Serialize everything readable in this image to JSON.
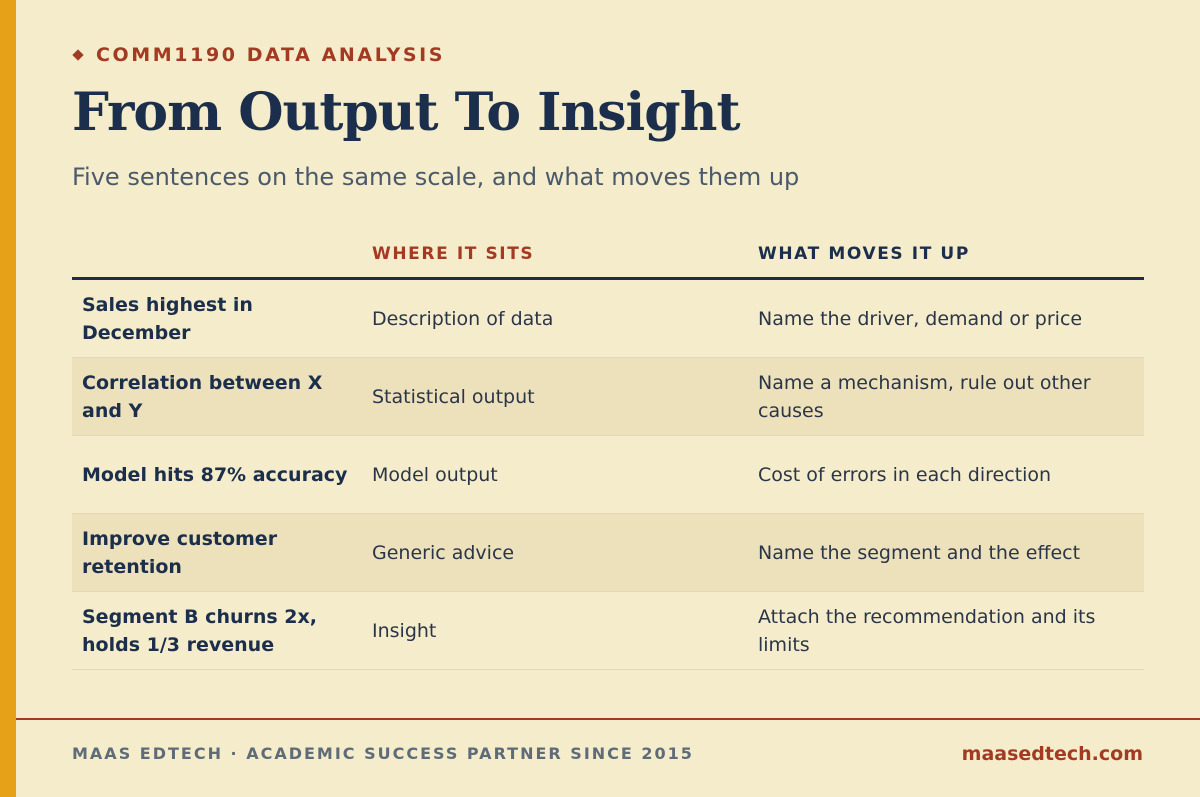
{
  "header": {
    "eyebrow": "COMM1190 DATA ANALYSIS",
    "title": "From Output To Insight",
    "subtitle": "Five sentences on the same scale, and what moves them up"
  },
  "table": {
    "columns": [
      "",
      "WHERE IT SITS",
      "WHAT MOVES IT UP"
    ],
    "rows": [
      {
        "sentence": "Sales highest in December",
        "sits": "Description of data",
        "moves": "Name the driver, demand or price"
      },
      {
        "sentence": "Correlation between X and Y",
        "sits": "Statistical output",
        "moves": "Name a mechanism, rule out other causes"
      },
      {
        "sentence": "Model hits 87% accuracy",
        "sits": "Model output",
        "moves": "Cost of errors in each direction"
      },
      {
        "sentence": "Improve customer retention",
        "sits": "Generic advice",
        "moves": "Name the segment and the effect"
      },
      {
        "sentence": "Segment B churns 2x, holds 1/3 revenue",
        "sits": "Insight",
        "moves": "Attach the recommendation and its limits"
      }
    ]
  },
  "footer": {
    "left": "MAAS EDTECH · ACADEMIC SUCCESS PARTNER SINCE 2015",
    "right": "maasedtech.com"
  },
  "colors": {
    "background": "#F5ECCB",
    "accent_bar": "#E6A118",
    "brand_red": "#A33A22",
    "navy": "#1B2E4B",
    "row_shade": "#EDE1BC"
  }
}
